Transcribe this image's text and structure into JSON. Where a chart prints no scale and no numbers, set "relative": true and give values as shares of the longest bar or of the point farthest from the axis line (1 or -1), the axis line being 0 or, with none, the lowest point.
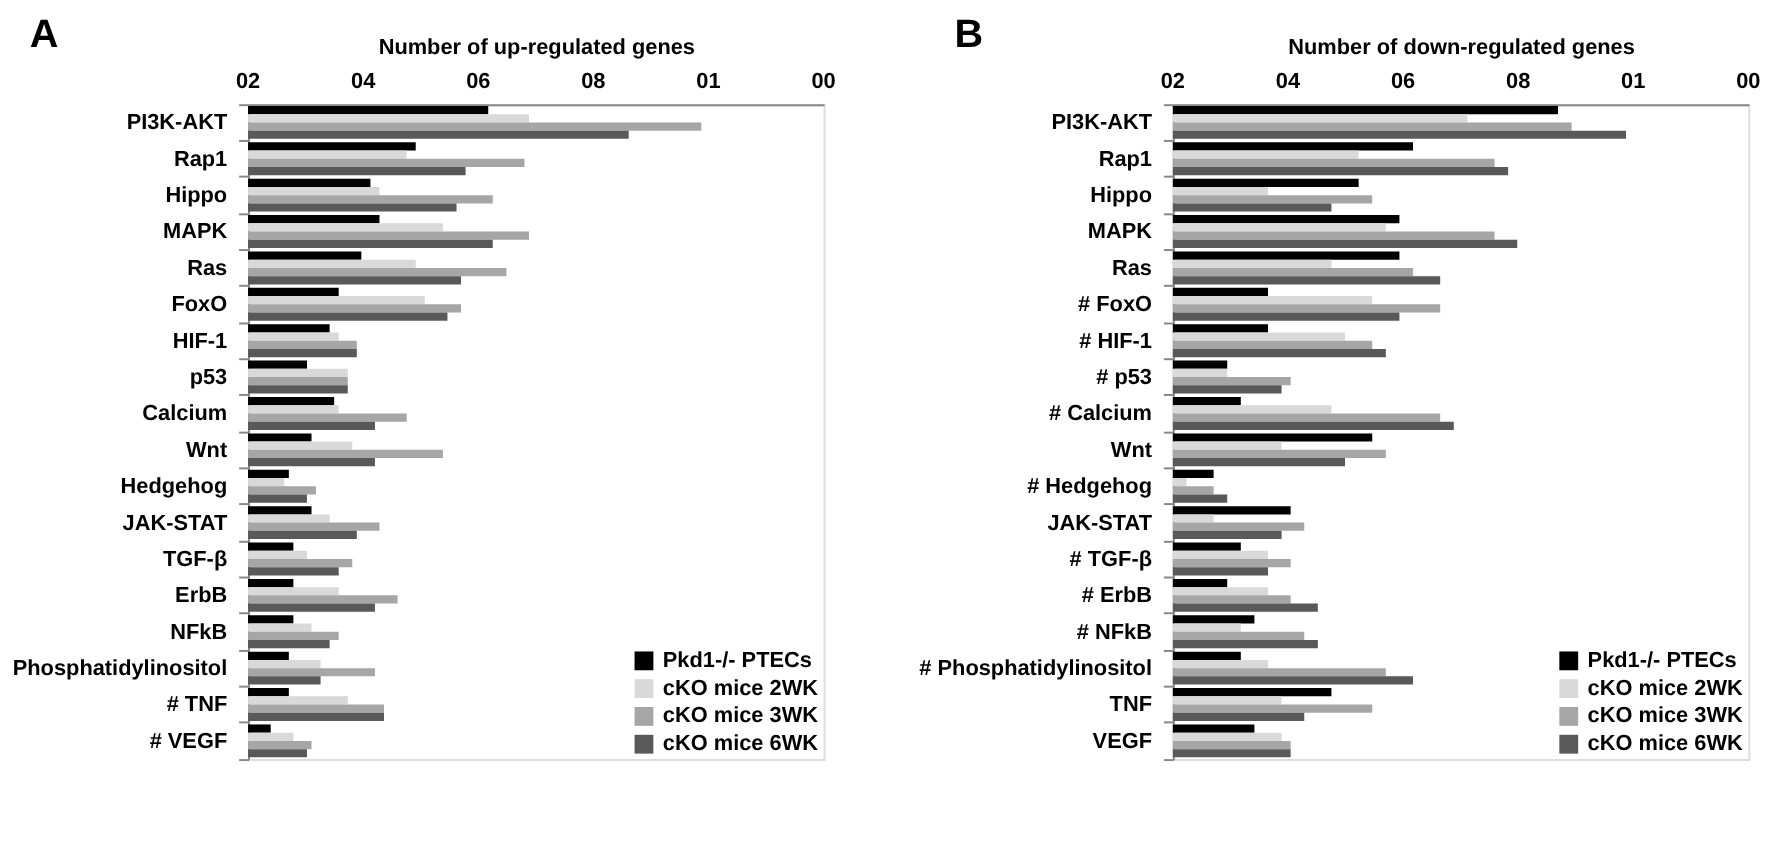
{
  "chart_data": [
    {
      "type": "bar",
      "orientation": "horizontal",
      "title": "A",
      "xlabel": "Number of up-regulated genes",
      "legend": "bottom right",
      "relative": true,
      "annotations": [
        "02",
        "04",
        "06",
        "08",
        "01",
        "00"
      ],
      "categories": [
        "PI3K-AKT",
        "Rap1",
        "Hippo",
        "MAPK",
        "Ras",
        "FoxO",
        "HIF-1",
        "p53",
        "Calcium",
        "Wnt",
        "Hedgehog",
        "JAK-STAT",
        "TGF-β",
        "ErbB",
        "NFkB",
        "Phosphatidylinositol",
        "# TNF",
        "# VEGF"
      ],
      "series": [
        {
          "name": "Pkd1-/- PTECs",
          "color": "#000000",
          "values": [
            0.53,
            0.37,
            0.27,
            0.29,
            0.25,
            0.2,
            0.18,
            0.13,
            0.19,
            0.14,
            0.09,
            0.14,
            0.1,
            0.1,
            0.1,
            0.09,
            0.09,
            0.05
          ]
        },
        {
          "name": "cKO mice 2WK",
          "color": "#d9d9d9",
          "values": [
            0.62,
            0.35,
            0.29,
            0.43,
            0.37,
            0.39,
            0.2,
            0.22,
            0.2,
            0.23,
            0.08,
            0.18,
            0.13,
            0.2,
            0.14,
            0.16,
            0.22,
            0.1
          ]
        },
        {
          "name": "cKO mice 3WK",
          "color": "#a6a6a6",
          "values": [
            1,
            0.61,
            0.54,
            0.62,
            0.57,
            0.47,
            0.24,
            0.22,
            0.35,
            0.43,
            0.15,
            0.29,
            0.23,
            0.33,
            0.2,
            0.28,
            0.3,
            0.14
          ]
        },
        {
          "name": "cKO mice 6WK",
          "color": "#595959",
          "values": [
            0.84,
            0.48,
            0.46,
            0.54,
            0.47,
            0.44,
            0.24,
            0.22,
            0.28,
            0.28,
            0.13,
            0.24,
            0.2,
            0.28,
            0.18,
            0.16,
            0.3,
            0.13
          ]
        }
      ]
    },
    {
      "type": "bar",
      "orientation": "horizontal",
      "title": "B",
      "xlabel": "Number of down-regulated genes",
      "legend": "bottom right",
      "relative": true,
      "annotations": [
        "02",
        "04",
        "06",
        "08",
        "01",
        "00"
      ],
      "categories": [
        "PI3K-AKT",
        "Rap1",
        "Hippo",
        "MAPK",
        "Ras",
        "# FoxO",
        "# HIF-1",
        "# p53",
        "# Calcium",
        "Wnt",
        "# Hedgehog",
        "JAK-STAT",
        "# TGF-β",
        "# ErbB",
        "# NFkB",
        "# Phosphatidylinositol",
        "TNF",
        "VEGF"
      ],
      "series": [
        {
          "name": "Pkd1-/- PTECs",
          "color": "#000000",
          "values": [
            0.85,
            0.53,
            0.41,
            0.5,
            0.5,
            0.21,
            0.21,
            0.12,
            0.15,
            0.44,
            0.09,
            0.26,
            0.15,
            0.12,
            0.18,
            0.15,
            0.35,
            0.18
          ]
        },
        {
          "name": "cKO mice 2WK",
          "color": "#d9d9d9",
          "values": [
            0.65,
            0.41,
            0.21,
            0.47,
            0.35,
            0.44,
            0.38,
            0.12,
            0.35,
            0.24,
            0.03,
            0.09,
            0.21,
            0.21,
            0.15,
            0.21,
            0.24,
            0.24
          ]
        },
        {
          "name": "cKO mice 3WK",
          "color": "#a6a6a6",
          "values": [
            0.88,
            0.71,
            0.44,
            0.71,
            0.53,
            0.59,
            0.44,
            0.26,
            0.59,
            0.47,
            0.09,
            0.29,
            0.26,
            0.26,
            0.29,
            0.47,
            0.44,
            0.26
          ]
        },
        {
          "name": "cKO mice 6WK",
          "color": "#595959",
          "values": [
            1,
            0.74,
            0.35,
            0.76,
            0.59,
            0.5,
            0.47,
            0.24,
            0.62,
            0.38,
            0.12,
            0.24,
            0.21,
            0.32,
            0.32,
            0.53,
            0.29,
            0.26
          ]
        }
      ]
    }
  ]
}
